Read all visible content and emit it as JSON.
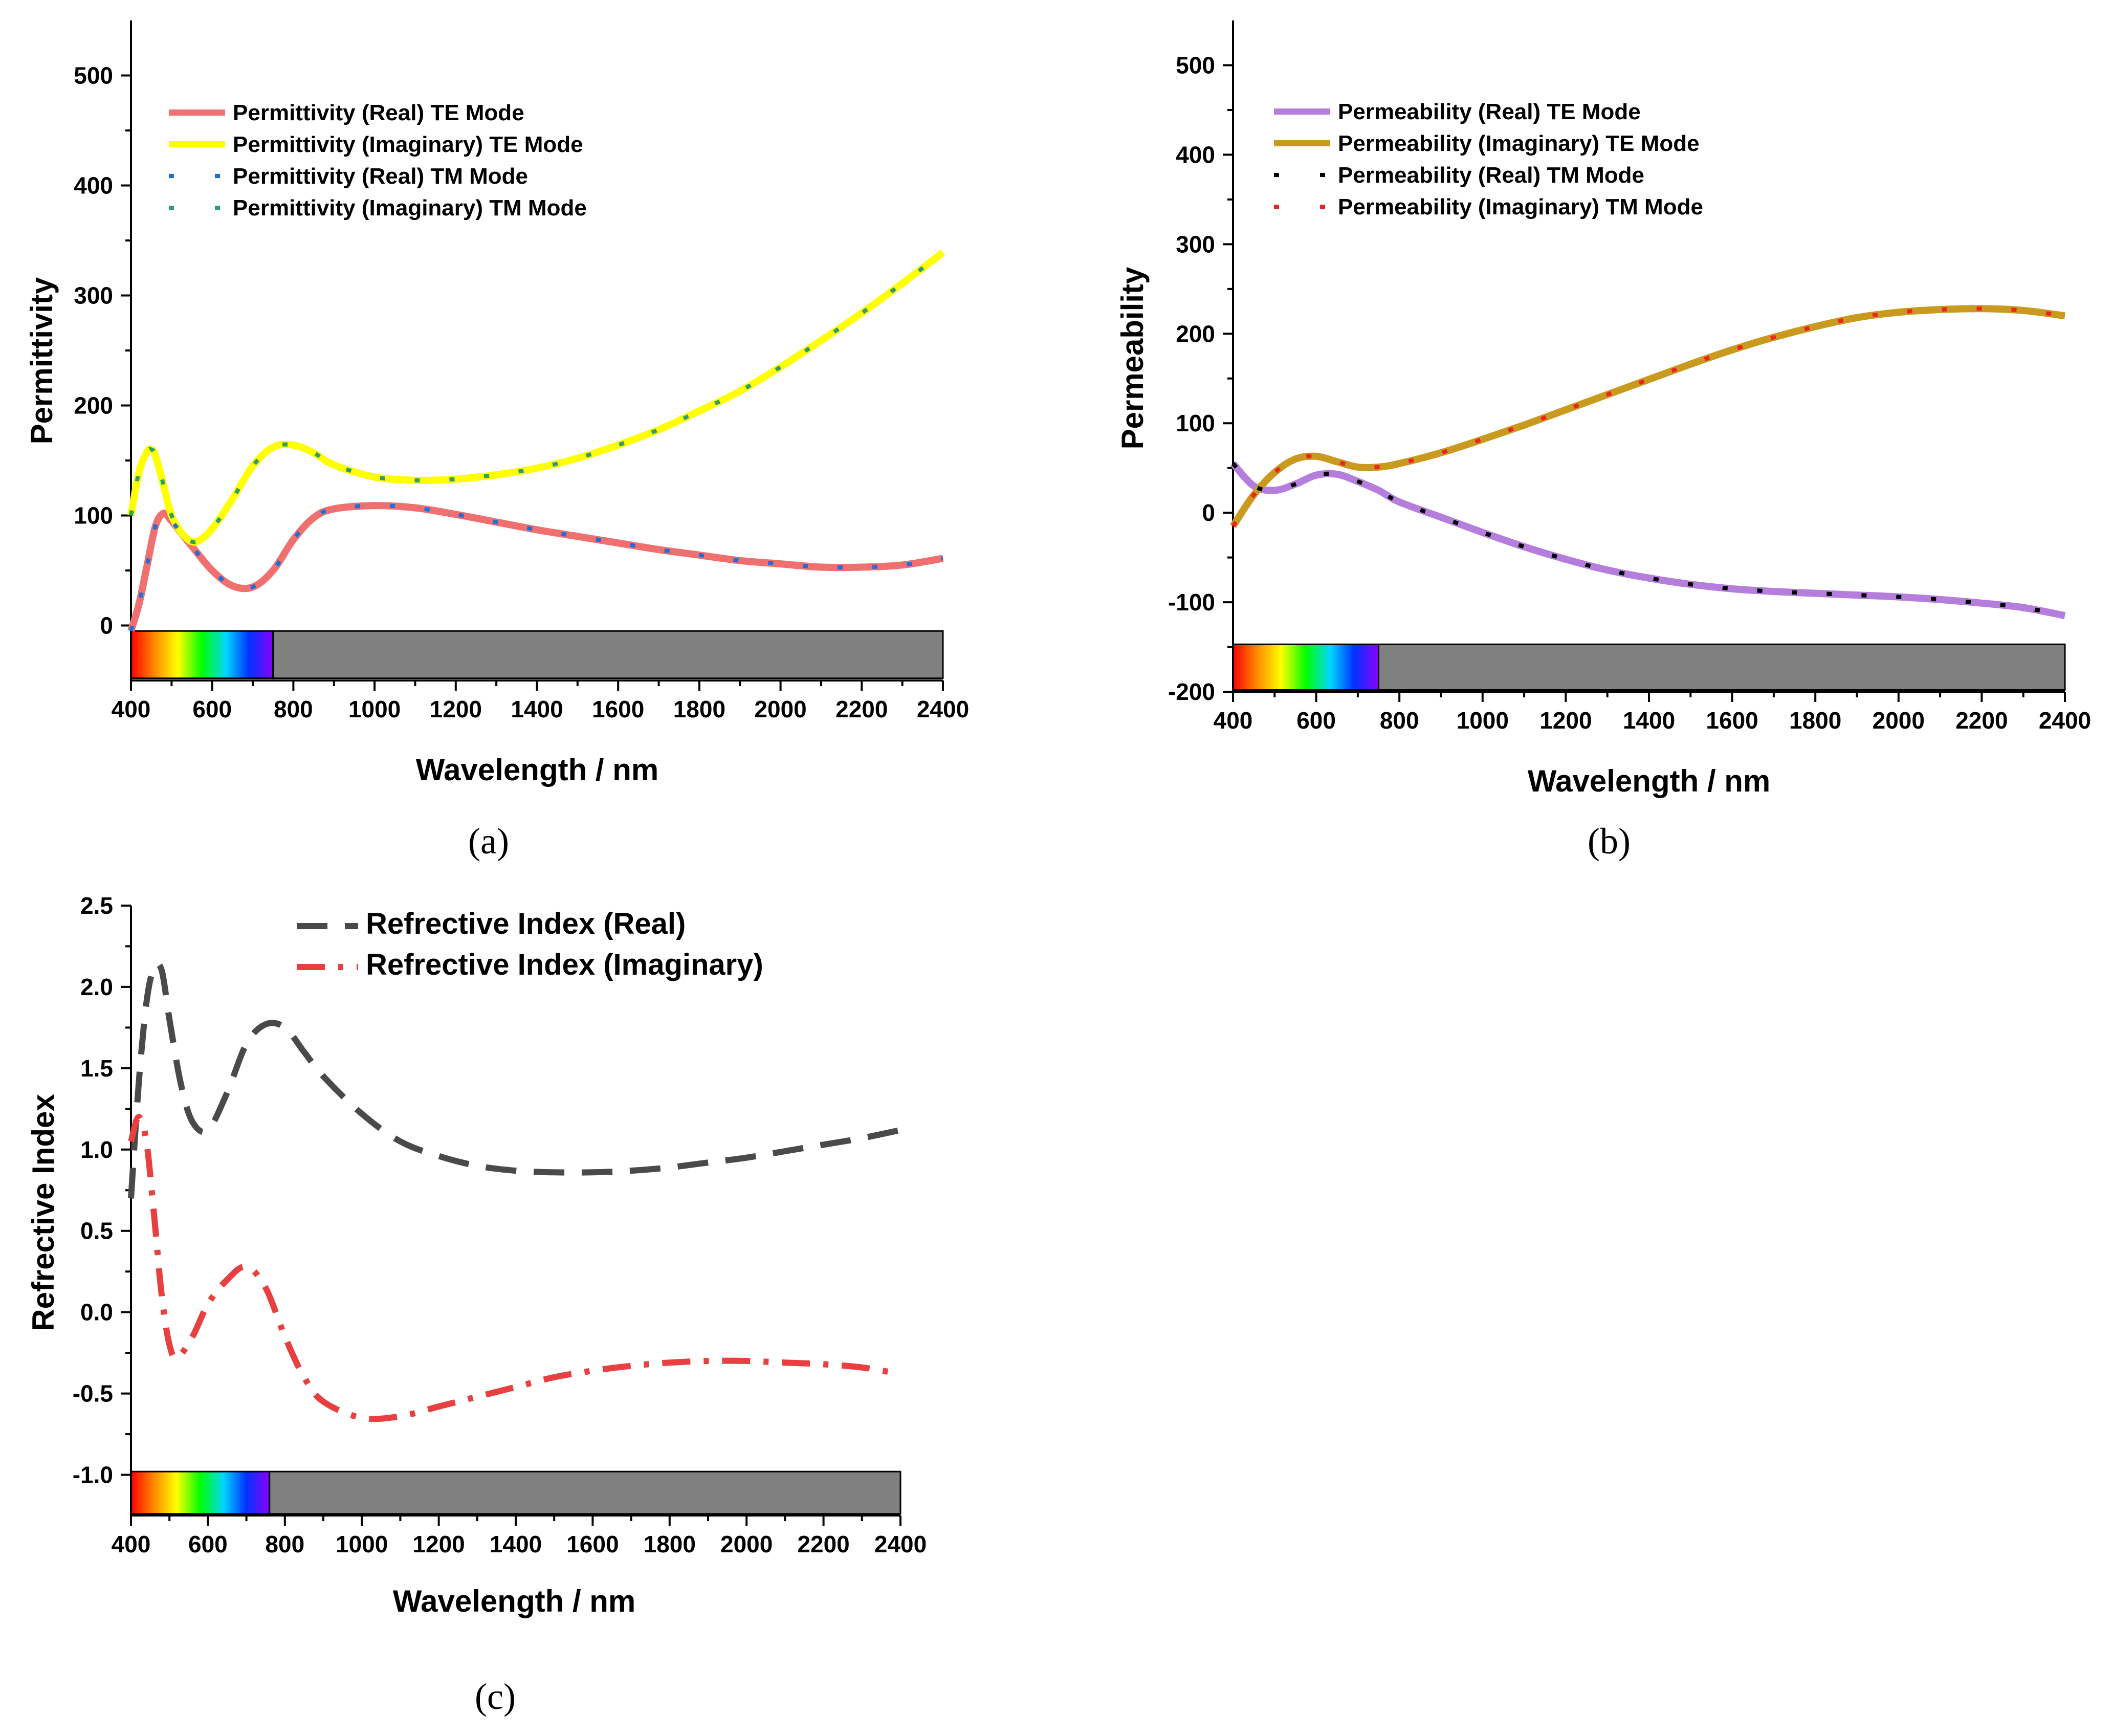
{
  "chart_data": [
    {
      "type": "line",
      "panel_label": "(a)",
      "title": "",
      "xlabel": "Wavelength / nm",
      "ylabel": "Permittivity",
      "xlim": [
        400,
        2400
      ],
      "ylim": [
        -50,
        550
      ],
      "xticks": [
        "400",
        "600",
        "800",
        "1000",
        "1200",
        "1400",
        "1600",
        "1800",
        "2000",
        "2200",
        "2400"
      ],
      "yticks": [
        "0",
        "100",
        "200",
        "300",
        "400",
        "500"
      ],
      "legend_position": "top-left",
      "spectrum_bar": {
        "visible_end": 750,
        "y_range": [
          -48,
          -5
        ],
        "gray_color": "#808080"
      },
      "series": [
        {
          "name": "Permittivity (Real) TE Mode",
          "style": "solid",
          "color": "#f07070",
          "width": 14,
          "x": [
            400,
            420,
            440,
            460,
            480,
            500,
            550,
            600,
            650,
            700,
            750,
            800,
            850,
            900,
            1000,
            1100,
            1200,
            1300,
            1400,
            1500,
            1600,
            1700,
            1800,
            1900,
            2000,
            2100,
            2200,
            2300,
            2400
          ],
          "values": [
            -5,
            20,
            55,
            90,
            102,
            95,
            72,
            50,
            36,
            35,
            50,
            78,
            98,
            106,
            109,
            107,
            101,
            94,
            87,
            81,
            75,
            69,
            64,
            59,
            56,
            53,
            53,
            55,
            61
          ]
        },
        {
          "name": "Permittivity (Imaginary) TE Mode",
          "style": "solid",
          "color": "#ffff00",
          "width": 14,
          "x": [
            400,
            420,
            440,
            450,
            460,
            480,
            500,
            530,
            560,
            600,
            650,
            700,
            750,
            800,
            850,
            900,
            1000,
            1100,
            1200,
            1300,
            1400,
            1500,
            1600,
            1700,
            1800,
            1900,
            2000,
            2100,
            2200,
            2300,
            2400
          ],
          "values": [
            100,
            140,
            158,
            160,
            155,
            128,
            100,
            82,
            76,
            88,
            115,
            145,
            162,
            164,
            157,
            146,
            135,
            132,
            133,
            137,
            143,
            152,
            164,
            178,
            195,
            213,
            235,
            259,
            284,
            311,
            339
          ]
        },
        {
          "name": "Permittivity (Real) TM Mode",
          "style": "dotted",
          "color": "#1f6fd8",
          "width": 8,
          "x": [
            400,
            420,
            440,
            460,
            480,
            500,
            550,
            600,
            650,
            700,
            750,
            800,
            850,
            900,
            1000,
            1100,
            1200,
            1300,
            1400,
            1500,
            1600,
            1700,
            1800,
            1900,
            2000,
            2100,
            2200,
            2300,
            2400
          ],
          "values": [
            -5,
            20,
            55,
            90,
            102,
            95,
            72,
            50,
            36,
            35,
            50,
            78,
            98,
            106,
            109,
            107,
            101,
            94,
            87,
            81,
            75,
            69,
            64,
            59,
            56,
            53,
            53,
            55,
            61
          ]
        },
        {
          "name": "Permittivity (Imaginary) TM Mode",
          "style": "dotted",
          "color": "#2e9e6a",
          "width": 8,
          "x": [
            400,
            420,
            440,
            450,
            460,
            480,
            500,
            530,
            560,
            600,
            650,
            700,
            750,
            800,
            850,
            900,
            1000,
            1100,
            1200,
            1300,
            1400,
            1500,
            1600,
            1700,
            1800,
            1900,
            2000,
            2100,
            2200,
            2300,
            2400
          ],
          "values": [
            100,
            140,
            158,
            160,
            155,
            128,
            100,
            82,
            76,
            88,
            115,
            145,
            162,
            164,
            157,
            146,
            135,
            132,
            133,
            137,
            143,
            152,
            164,
            178,
            195,
            213,
            235,
            259,
            284,
            311,
            339
          ]
        }
      ]
    },
    {
      "type": "line",
      "panel_label": "(b)",
      "title": "",
      "xlabel": "Wavelength / nm",
      "ylabel": "Permeability",
      "xlim": [
        400,
        2400
      ],
      "ylim": [
        -200,
        550
      ],
      "xticks": [
        "400",
        "600",
        "800",
        "1000",
        "1200",
        "1400",
        "1600",
        "1800",
        "2000",
        "2200",
        "2400"
      ],
      "yticks": [
        "-200",
        "-100",
        "0",
        "100",
        "200",
        "300",
        "400",
        "500"
      ],
      "legend_position": "top-left",
      "spectrum_bar": {
        "visible_end": 750,
        "y_range": [
          -198,
          -147
        ],
        "gray_color": "#808080"
      },
      "series": [
        {
          "name": "Permeability  (Real) TE Mode",
          "style": "solid",
          "color": "#b57edc",
          "width": 14,
          "x": [
            400,
            450,
            500,
            550,
            600,
            650,
            700,
            750,
            800,
            900,
            1000,
            1100,
            1200,
            1300,
            1400,
            1500,
            1600,
            1700,
            1800,
            1900,
            2000,
            2100,
            2200,
            2300,
            2400
          ],
          "values": [
            55,
            30,
            25,
            32,
            42,
            43,
            35,
            25,
            12,
            -5,
            -22,
            -38,
            -52,
            -64,
            -73,
            -80,
            -85,
            -88,
            -90,
            -92,
            -94,
            -97,
            -101,
            -106,
            -115
          ]
        },
        {
          "name": "Permeability (Imaginary) TE Mode",
          "style": "solid",
          "color": "#c99a1e",
          "width": 14,
          "x": [
            400,
            450,
            500,
            550,
            600,
            650,
            700,
            750,
            800,
            900,
            1000,
            1100,
            1200,
            1300,
            1400,
            1500,
            1600,
            1700,
            1800,
            1900,
            2000,
            2100,
            2200,
            2300,
            2400
          ],
          "values": [
            -15,
            20,
            45,
            60,
            63,
            57,
            51,
            51,
            55,
            67,
            82,
            98,
            115,
            132,
            149,
            166,
            182,
            196,
            208,
            218,
            224,
            227,
            228,
            226,
            220
          ]
        },
        {
          "name": "Permeability  (Real) TM Mode",
          "style": "dotted",
          "color": "#000000",
          "width": 8,
          "x": [
            400,
            450,
            500,
            550,
            600,
            650,
            700,
            750,
            800,
            900,
            1000,
            1100,
            1200,
            1300,
            1400,
            1500,
            1600,
            1700,
            1800,
            1900,
            2000,
            2100,
            2200,
            2300,
            2400
          ],
          "values": [
            55,
            30,
            25,
            32,
            42,
            43,
            35,
            25,
            12,
            -5,
            -22,
            -38,
            -52,
            -64,
            -73,
            -80,
            -85,
            -88,
            -90,
            -92,
            -94,
            -97,
            -101,
            -106,
            -115
          ]
        },
        {
          "name": "Permeability (Imaginary) TM Mode",
          "style": "dotted",
          "color": "#ee2222",
          "width": 8,
          "x": [
            400,
            450,
            500,
            550,
            600,
            650,
            700,
            750,
            800,
            900,
            1000,
            1100,
            1200,
            1300,
            1400,
            1500,
            1600,
            1700,
            1800,
            1900,
            2000,
            2100,
            2200,
            2300,
            2400
          ],
          "values": [
            -15,
            20,
            45,
            60,
            63,
            57,
            51,
            51,
            55,
            67,
            82,
            98,
            115,
            132,
            149,
            166,
            182,
            196,
            208,
            218,
            224,
            227,
            228,
            226,
            220
          ]
        }
      ]
    },
    {
      "type": "line",
      "panel_label": "(c)",
      "title": "",
      "xlabel": "Wavelength / nm",
      "ylabel": "Refrective Index",
      "xlim": [
        400,
        2400
      ],
      "ylim": [
        -1.25,
        2.5
      ],
      "xticks": [
        "400",
        "600",
        "800",
        "1000",
        "1200",
        "1400",
        "1600",
        "1800",
        "2000",
        "2200",
        "2400"
      ],
      "yticks": [
        "-1.0",
        "-0.5",
        "0.0",
        "0.5",
        "1.0",
        "1.5",
        "2.0",
        "2.5"
      ],
      "legend_position": "top-center",
      "spectrum_bar": {
        "visible_end": 760,
        "y_range": [
          -1.24,
          -0.98
        ],
        "gray_color": "#808080"
      },
      "series": [
        {
          "name": "Refrective Index (Real)",
          "style": "dash",
          "color": "#4a4a4a",
          "width": 12,
          "x": [
            400,
            420,
            440,
            460,
            480,
            500,
            530,
            560,
            600,
            650,
            700,
            750,
            800,
            850,
            900,
            1000,
            1100,
            1200,
            1300,
            1400,
            1500,
            1600,
            1700,
            1800,
            1900,
            2000,
            2100,
            2200,
            2300,
            2400
          ],
          "values": [
            0.7,
            1.4,
            1.9,
            2.12,
            2.1,
            1.8,
            1.4,
            1.17,
            1.12,
            1.35,
            1.65,
            1.77,
            1.75,
            1.6,
            1.45,
            1.22,
            1.05,
            0.96,
            0.9,
            0.87,
            0.86,
            0.86,
            0.87,
            0.89,
            0.92,
            0.95,
            0.99,
            1.03,
            1.07,
            1.12
          ]
        },
        {
          "name": "Refrective Index (Imaginary)",
          "style": "dashdot",
          "color": "#e84040",
          "width": 12,
          "x": [
            400,
            420,
            440,
            460,
            480,
            500,
            520,
            560,
            600,
            650,
            700,
            750,
            800,
            850,
            900,
            1000,
            1100,
            1200,
            1300,
            1400,
            1500,
            1600,
            1700,
            1800,
            1900,
            2000,
            2100,
            2200,
            2300,
            2400
          ],
          "values": [
            1.05,
            1.2,
            1.05,
            0.6,
            0.1,
            -0.2,
            -0.28,
            -0.15,
            0.05,
            0.2,
            0.28,
            0.15,
            -0.15,
            -0.4,
            -0.55,
            -0.65,
            -0.64,
            -0.58,
            -0.52,
            -0.46,
            -0.4,
            -0.36,
            -0.33,
            -0.31,
            -0.3,
            -0.3,
            -0.31,
            -0.32,
            -0.34,
            -0.38
          ]
        }
      ]
    }
  ]
}
